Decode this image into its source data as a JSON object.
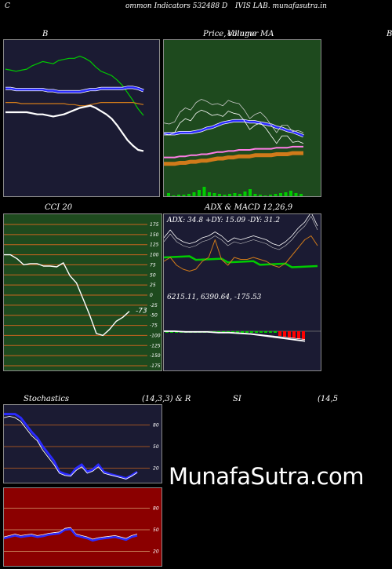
{
  "header": {
    "left": "C",
    "mid": "ommon  Indicators 532488  D",
    "right": "IVIS LAB. munafasutra.in"
  },
  "titles": {
    "bb": "B",
    "price": "Price,",
    "volume": "Volume",
    "ma": "MA",
    "ma_over": "ollinger",
    "edge_b": "B",
    "cci": "CCI 20",
    "adx": "ADX  & MACD 12,26,9",
    "adx_values": "ADX: 34.8   +DY: 15.09 -DY: 31.2",
    "macd_values": "6215.11,   6390.64,  -175.53",
    "stoch": "Stochastics",
    "stoch_params": "(14,3,3) & R",
    "rsi": "SI",
    "rsi_params": "(14,5"
  },
  "watermark": "MunafaSutra.com",
  "colors": {
    "panel_blue": "#1b1b33",
    "panel_green": "#1e4a1e",
    "panel_red": "#8b0000",
    "green_line": "#00cc00",
    "blue_line": "#2a2aff",
    "orange_line": "#d07a1a",
    "white_line": "#ffffff",
    "grid": "#c8641e"
  },
  "chart_data": [
    {
      "type": "line",
      "title": "B",
      "series": [
        {
          "values": [
            118,
            117,
            116,
            117,
            118,
            121,
            123,
            125,
            124,
            123,
            126,
            127,
            128,
            128,
            130,
            128,
            125,
            120,
            116,
            114,
            112,
            108,
            103,
            96,
            89,
            81,
            75
          ]
        },
        {
          "values": [
            100,
            100,
            99,
            99,
            99,
            99,
            99,
            99,
            98,
            98,
            97,
            97,
            97,
            97,
            97,
            98,
            99,
            99,
            100,
            100,
            100,
            100,
            100,
            101,
            101,
            100,
            98
          ]
        },
        {
          "values": [
            87,
            87,
            87,
            86,
            86,
            86,
            86,
            86,
            86,
            86,
            86,
            86,
            85,
            85,
            84,
            84,
            85,
            86,
            87,
            87,
            87,
            87,
            87,
            87,
            87,
            86,
            85
          ]
        },
        {
          "values": [
            78,
            78,
            78,
            78,
            78,
            77,
            76,
            76,
            75,
            74,
            75,
            76,
            78,
            80,
            82,
            83,
            84,
            82,
            79,
            76,
            72,
            66,
            59,
            52,
            47,
            43,
            42
          ]
        }
      ]
    },
    {
      "type": "line",
      "title": "Price, Volume, MA",
      "series": [
        {
          "values": [
            58,
            58,
            58,
            59,
            59,
            59,
            60,
            61,
            63,
            64,
            66,
            68,
            69,
            70,
            70,
            70,
            69,
            69,
            68,
            67,
            66,
            64,
            63,
            61,
            60,
            58,
            56
          ]
        },
        {
          "values": [
            36,
            36,
            36,
            37,
            37,
            38,
            38,
            39,
            39,
            40,
            41,
            41,
            42,
            42,
            43,
            43,
            43,
            44,
            44,
            44,
            44,
            45,
            45,
            45,
            46,
            46,
            46
          ]
        },
        {
          "values": [
            30,
            30,
            30,
            31,
            31,
            32,
            32,
            33,
            33,
            34,
            35,
            35,
            36,
            36,
            37,
            37,
            37,
            38,
            38,
            38,
            38,
            39,
            39,
            39,
            40,
            40,
            40
          ]
        },
        {
          "values": [
            58,
            57,
            59,
            68,
            72,
            70,
            77,
            80,
            78,
            75,
            76,
            74,
            79,
            77,
            76,
            70,
            62,
            66,
            68,
            63,
            56,
            49,
            56,
            56,
            50,
            51,
            49
          ]
        },
        {
          "values": [
            4,
            1,
            2,
            2,
            3,
            5,
            8,
            12,
            5,
            4,
            3,
            2,
            3,
            4,
            3,
            6,
            9,
            3,
            2,
            1,
            2,
            3,
            4,
            5,
            7,
            4,
            3
          ]
        }
      ]
    },
    {
      "type": "line",
      "title": "CCI 20",
      "y_ticks": [
        175,
        150,
        125,
        100,
        75,
        50,
        25,
        0,
        -25,
        -50,
        -75,
        -100,
        -125,
        -150,
        -175
      ],
      "series": [
        {
          "values": [
            100,
            100,
            90,
            75,
            78,
            78,
            72,
            72,
            70,
            80,
            48,
            30,
            -10,
            -50,
            -95,
            -100,
            -85,
            -65,
            -55,
            -40
          ]
        }
      ]
    },
    {
      "type": "line",
      "title": "ADX & MACD 12,26,9",
      "series": [
        {
          "values": [
            30,
            34,
            30,
            28,
            27,
            28,
            30,
            31,
            33,
            31,
            28,
            30,
            29,
            30,
            31,
            30,
            29,
            27,
            26,
            28,
            31,
            35,
            38,
            43,
            36
          ]
        },
        {
          "values": [
            20,
            22,
            18,
            16,
            15,
            16,
            20,
            22,
            31,
            21,
            18,
            22,
            21,
            21,
            22,
            21,
            20,
            18,
            17,
            19,
            23,
            27,
            31,
            33,
            28
          ]
        }
      ]
    },
    {
      "type": "line",
      "title": "Stochastics (14,3,3) & RSI",
      "y_ticks": [
        80,
        50,
        20
      ],
      "series": [
        {
          "values": [
            95,
            95,
            95,
            90,
            80,
            70,
            62,
            50,
            40,
            30,
            15,
            12,
            10,
            20,
            25,
            15,
            18,
            25,
            15,
            12,
            10,
            8,
            6,
            10,
            15
          ]
        },
        {
          "values": [
            90,
            92,
            90,
            85,
            75,
            65,
            58,
            45,
            35,
            25,
            13,
            10,
            9,
            17,
            22,
            13,
            16,
            22,
            13,
            11,
            9,
            7,
            5,
            9,
            14
          ]
        }
      ]
    },
    {
      "type": "line",
      "title": "RSI",
      "y_ticks": [
        80,
        50,
        20
      ],
      "series": [
        {
          "values": [
            38,
            40,
            42,
            40,
            41,
            42,
            40,
            41,
            43,
            44,
            45,
            50,
            51,
            42,
            40,
            38,
            35,
            37,
            38,
            39,
            40,
            38,
            36,
            40,
            42
          ]
        }
      ]
    }
  ]
}
